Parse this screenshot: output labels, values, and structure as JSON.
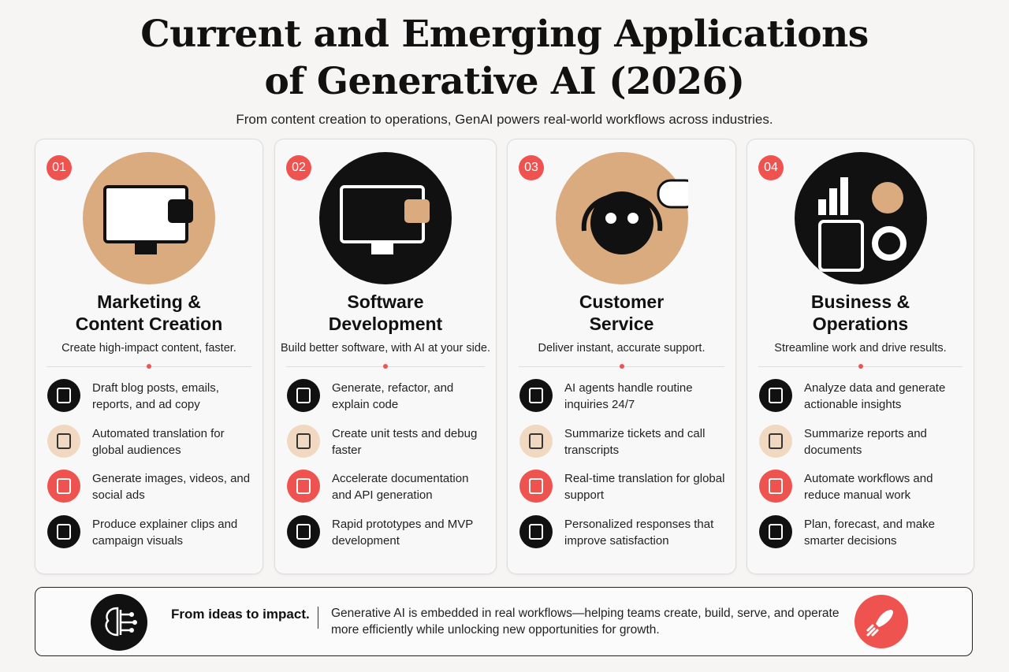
{
  "header": {
    "title": [
      "Current and Emerging Applications",
      "of Generative AI (2026)"
    ],
    "subtitle": "From content creation to operations, GenAI powers real-world workflows across industries."
  },
  "cards": [
    {
      "number": "01",
      "title": [
        "Marketing &",
        "Content Creation"
      ],
      "tagline": "Create high-impact content, faster.",
      "items": [
        "Draft blog posts, emails, reports, and ad copy",
        "Automated translation for global audiences",
        "Generate images, videos, and social ads",
        "Produce explainer clips and campaign visuals"
      ]
    },
    {
      "number": "02",
      "title": [
        "Software",
        "Development"
      ],
      "tagline": "Build better software, with AI at your side.",
      "items": [
        "Generate, refactor, and explain code",
        "Create unit tests and debug faster",
        "Accelerate documentation and API generation",
        "Rapid prototypes and MVP development"
      ]
    },
    {
      "number": "03",
      "title": [
        "Customer",
        "Service"
      ],
      "tagline": "Deliver instant, accurate support.",
      "items": [
        "AI agents handle routine inquiries 24/7",
        "Summarize tickets and call transcripts",
        "Real-time translation for global support",
        "Personalized responses that improve satisfaction"
      ]
    },
    {
      "number": "04",
      "title": [
        "Business &",
        "Operations"
      ],
      "tagline": "Streamline work and drive results.",
      "items": [
        "Analyze data and generate actionable insights",
        "Summarize reports and documents",
        "Automate workflows and reduce manual work",
        "Plan, forecast, and make smarter decisions"
      ]
    }
  ],
  "footer": {
    "heading": "From ideas to impact.",
    "text": "Generative AI is embedded in real workflows—helping teams create, build, serve, and operate more efficiently while unlocking new opportunities for growth."
  }
}
